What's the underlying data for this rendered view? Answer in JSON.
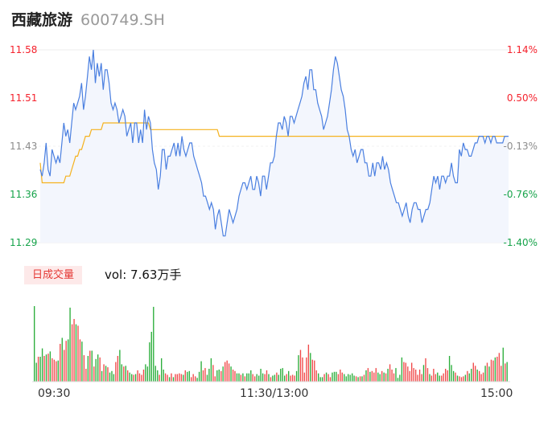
{
  "header": {
    "name": "西藏旅游",
    "code": "600749.SH"
  },
  "price_axis": {
    "labels": [
      "11.58",
      "11.51",
      "11.43",
      "11.36",
      "11.29"
    ],
    "pct_labels": [
      "1.14%",
      "0.50%",
      "-0.13%",
      "-0.76%",
      "-1.40%"
    ]
  },
  "volume": {
    "tag": "日成交量",
    "label": "vol: 7.63万手"
  },
  "time_axis": {
    "labels": [
      "09:30",
      "11:30/13:00",
      "15:00"
    ]
  },
  "colors": {
    "price_line": "#4a7fe0",
    "avg_line": "#f5b21e",
    "area_fill": "#f3f6fd",
    "up": "#f5222d",
    "down": "#16a34a",
    "vol_up": "#f04a4a",
    "vol_down": "#2cae3c"
  },
  "chart_data": {
    "type": "line",
    "title": "西藏旅游 600749.SH",
    "x_range": [
      "09:30",
      "15:00"
    ],
    "ylim": [
      11.29,
      11.58
    ],
    "pct_range": [
      -1.4,
      1.14
    ],
    "series": [
      {
        "values": [
          11.4,
          11.39,
          11.41,
          11.44,
          11.4,
          11.39,
          11.43,
          11.42,
          11.41,
          11.42,
          11.41,
          11.44,
          11.47,
          11.45,
          11.46,
          11.44,
          11.47,
          11.5,
          11.49,
          11.5,
          11.51,
          11.53,
          11.49,
          11.51,
          11.54,
          11.57,
          11.55,
          11.58,
          11.53,
          11.56,
          11.54,
          11.56,
          11.52,
          11.55,
          11.55,
          11.53,
          11.5,
          11.49,
          11.5,
          11.49,
          11.47,
          11.48,
          11.49,
          11.48,
          11.45,
          11.46,
          11.47,
          11.44,
          11.47,
          11.47,
          11.44,
          11.46,
          11.44,
          11.49,
          11.46,
          11.48,
          11.47,
          11.43,
          11.41,
          11.4,
          11.37,
          11.39,
          11.43,
          11.43,
          11.4,
          11.42,
          11.42,
          11.43,
          11.44,
          11.42,
          11.44,
          11.42,
          11.45,
          11.43,
          11.42,
          11.43,
          11.44,
          11.44,
          11.42,
          11.41,
          11.4,
          11.39,
          11.38,
          11.36,
          11.36,
          11.35,
          11.34,
          11.35,
          11.34,
          11.31,
          11.33,
          11.34,
          11.32,
          11.3,
          11.3,
          11.32,
          11.34,
          11.33,
          11.32,
          11.33,
          11.34,
          11.36,
          11.37,
          11.38,
          11.38,
          11.37,
          11.38,
          11.39,
          11.37,
          11.37,
          11.39,
          11.38,
          11.36,
          11.39,
          11.39,
          11.37,
          11.39,
          11.41,
          11.41,
          11.42,
          11.45,
          11.47,
          11.47,
          11.46,
          11.48,
          11.47,
          11.45,
          11.48,
          11.48,
          11.47,
          11.48,
          11.49,
          11.5,
          11.51,
          11.53,
          11.54,
          11.52,
          11.55,
          11.55,
          11.52,
          11.52,
          11.5,
          11.49,
          11.48,
          11.46,
          11.47,
          11.48,
          11.5,
          11.52,
          11.55,
          11.57,
          11.56,
          11.54,
          11.52,
          11.51,
          11.49,
          11.46,
          11.45,
          11.43,
          11.42,
          11.43,
          11.41,
          11.42,
          11.43,
          11.43,
          11.41,
          11.41,
          11.39,
          11.39,
          11.41,
          11.39,
          11.41,
          11.41,
          11.4,
          11.42,
          11.4,
          11.41,
          11.4,
          11.38,
          11.37,
          11.36,
          11.35,
          11.35,
          11.34,
          11.33,
          11.34,
          11.35,
          11.33,
          11.32,
          11.34,
          11.35,
          11.35,
          11.34,
          11.34,
          11.32,
          11.33,
          11.34,
          11.34,
          11.35,
          11.37,
          11.39,
          11.38,
          11.39,
          11.37,
          11.39,
          11.39,
          11.38,
          11.39,
          11.39,
          11.41,
          11.39,
          11.38,
          11.38,
          11.43,
          11.42,
          11.44,
          11.43,
          11.43,
          11.42,
          11.42,
          11.43,
          11.44,
          11.44,
          11.45,
          11.45,
          11.45,
          11.44,
          11.45,
          11.45,
          11.44,
          11.45,
          11.45,
          11.44,
          11.44,
          11.44,
          11.44,
          11.45,
          11.45,
          11.45
        ],
        "stroke": "#4a7fe0"
      },
      {
        "values": [
          11.41,
          11.38,
          11.38,
          11.38,
          11.38,
          11.38,
          11.38,
          11.38,
          11.38,
          11.38,
          11.38,
          11.38,
          11.38,
          11.39,
          11.39,
          11.39,
          11.4,
          11.41,
          11.42,
          11.42,
          11.43,
          11.43,
          11.44,
          11.45,
          11.45,
          11.45,
          11.46,
          11.46,
          11.46,
          11.46,
          11.46,
          11.46,
          11.47,
          11.47,
          11.47,
          11.47,
          11.47,
          11.47,
          11.47,
          11.47,
          11.47,
          11.47,
          11.47,
          11.47,
          11.47,
          11.47,
          11.47,
          11.47,
          11.47,
          11.47,
          11.47,
          11.47,
          11.47,
          11.47,
          11.47,
          11.47,
          11.46,
          11.46,
          11.46,
          11.46,
          11.46,
          11.46,
          11.46,
          11.46,
          11.46,
          11.46,
          11.46,
          11.46,
          11.46,
          11.46,
          11.46,
          11.46,
          11.46,
          11.46,
          11.46,
          11.46,
          11.46,
          11.46,
          11.46,
          11.46,
          11.46,
          11.46,
          11.46,
          11.46,
          11.46,
          11.46,
          11.46,
          11.46,
          11.46,
          11.46,
          11.46,
          11.45,
          11.45,
          11.45,
          11.45,
          11.45,
          11.45,
          11.45,
          11.45,
          11.45,
          11.45,
          11.45,
          11.45,
          11.45,
          11.45,
          11.45,
          11.45,
          11.45,
          11.45,
          11.45,
          11.45,
          11.45,
          11.45,
          11.45,
          11.45,
          11.45,
          11.45,
          11.45,
          11.45,
          11.45,
          11.45,
          11.45,
          11.45,
          11.45,
          11.45,
          11.45,
          11.45,
          11.45,
          11.45,
          11.45,
          11.45,
          11.45,
          11.45,
          11.45,
          11.45,
          11.45,
          11.45,
          11.45,
          11.45,
          11.45,
          11.45,
          11.45,
          11.45,
          11.45,
          11.45,
          11.45,
          11.45,
          11.45,
          11.45,
          11.45,
          11.45,
          11.45,
          11.45,
          11.45,
          11.45,
          11.45,
          11.45,
          11.45,
          11.45,
          11.45,
          11.45,
          11.45,
          11.45,
          11.45,
          11.45,
          11.45,
          11.45,
          11.45,
          11.45,
          11.45,
          11.45,
          11.45,
          11.45,
          11.45,
          11.45,
          11.45,
          11.45,
          11.45,
          11.45,
          11.45,
          11.45,
          11.45,
          11.45,
          11.45,
          11.45,
          11.45,
          11.45,
          11.45,
          11.45,
          11.45,
          11.45,
          11.45,
          11.45,
          11.45,
          11.45,
          11.45,
          11.45,
          11.45,
          11.45,
          11.45,
          11.45,
          11.45,
          11.45,
          11.45,
          11.45,
          11.45,
          11.45,
          11.45,
          11.45,
          11.45,
          11.45,
          11.45,
          11.45,
          11.45,
          11.45,
          11.45,
          11.45,
          11.45,
          11.45,
          11.45,
          11.45,
          11.45,
          11.45,
          11.45,
          11.45,
          11.45,
          11.45,
          11.45,
          11.45,
          11.45,
          11.45,
          11.45,
          11.45,
          11.45,
          11.45,
          11.45,
          11.45,
          11.45
        ],
        "stroke": "#f5b21e"
      }
    ],
    "volume": {
      "ylim": [
        0,
        100
      ],
      "values": [
        100,
        25,
        33,
        33,
        44,
        34,
        36,
        37,
        40,
        31,
        29,
        27,
        28,
        50,
        58,
        42,
        54,
        56,
        98,
        76,
        83,
        76,
        74,
        56,
        53,
        35,
        17,
        34,
        41,
        41,
        20,
        30,
        36,
        32,
        14,
        23,
        21,
        19,
        12,
        14,
        10,
        26,
        34,
        42,
        23,
        20,
        21,
        15,
        12,
        10,
        9,
        10,
        15,
        11,
        9,
        16,
        23,
        20,
        52,
        66,
        99,
        21,
        15,
        9,
        31,
        16,
        11,
        9,
        6,
        11,
        6,
        10,
        10,
        11,
        10,
        9,
        15,
        13,
        14,
        6,
        10,
        7,
        5,
        13,
        27,
        15,
        18,
        9,
        17,
        31,
        22,
        7,
        15,
        16,
        14,
        20,
        26,
        28,
        24,
        20,
        16,
        14,
        11,
        11,
        9,
        11,
        7,
        11,
        11,
        15,
        10,
        7,
        10,
        8,
        17,
        11,
        10,
        15,
        10,
        6,
        8,
        9,
        12,
        9,
        17,
        18,
        8,
        10,
        14,
        8,
        9,
        8,
        14,
        35,
        42,
        32,
        12,
        32,
        49,
        38,
        29,
        28,
        15,
        11,
        6,
        6,
        10,
        12,
        10,
        6,
        12,
        13,
        13,
        10,
        16,
        12,
        10,
        7,
        10,
        9,
        11,
        8,
        7,
        6,
        7,
        7,
        9,
        15,
        18,
        13,
        14,
        12,
        18,
        12,
        10,
        14,
        12,
        11,
        17,
        23,
        16,
        11,
        18,
        5,
        9,
        32,
        26,
        25,
        20,
        14,
        25,
        18,
        16,
        9,
        16,
        10,
        22,
        31,
        18,
        10,
        8,
        17,
        10,
        12,
        8,
        8,
        11,
        17,
        15,
        34,
        22,
        14,
        12,
        8,
        7,
        6,
        7,
        9,
        14,
        11,
        17,
        25,
        21,
        16,
        14,
        10,
        12,
        21,
        25,
        20,
        29,
        28,
        32,
        33,
        38,
        21,
        45,
        24,
        26
      ],
      "direction": [
        "down",
        "down",
        "up",
        "down",
        "down",
        "up",
        "down",
        "up",
        "down",
        "up",
        "up",
        "up",
        "down",
        "up",
        "down",
        "up",
        "up",
        "down",
        "down",
        "up",
        "up",
        "down",
        "up",
        "up",
        "down",
        "up",
        "up",
        "down",
        "up",
        "down",
        "up",
        "down",
        "down",
        "up",
        "down",
        "up",
        "down",
        "up",
        "down",
        "down",
        "down",
        "up",
        "up",
        "down",
        "down",
        "up",
        "down",
        "up",
        "down",
        "down",
        "up",
        "down",
        "up",
        "up",
        "up",
        "up",
        "down",
        "down",
        "down",
        "down",
        "down",
        "down",
        "down",
        "up",
        "down",
        "down",
        "up",
        "up",
        "down",
        "up",
        "down",
        "up",
        "up",
        "up",
        "up",
        "down",
        "up",
        "down",
        "down",
        "up",
        "up",
        "up",
        "down",
        "down",
        "down",
        "up",
        "up",
        "down",
        "down",
        "down",
        "up",
        "up",
        "down",
        "down",
        "up",
        "down",
        "up",
        "up",
        "up",
        "down",
        "up",
        "up",
        "down",
        "down",
        "up",
        "down",
        "up",
        "down",
        "down",
        "down",
        "up",
        "up",
        "down",
        "down",
        "down",
        "down",
        "up",
        "up",
        "down",
        "up",
        "down",
        "down",
        "up",
        "down",
        "down",
        "down",
        "down",
        "up",
        "down",
        "up",
        "up",
        "up",
        "down",
        "down",
        "up",
        "up",
        "up",
        "up",
        "up",
        "down",
        "up",
        "up",
        "up",
        "down",
        "down",
        "down",
        "up",
        "down",
        "up",
        "up",
        "down",
        "down",
        "down",
        "up",
        "up",
        "up",
        "down",
        "down",
        "down",
        "down",
        "down",
        "down",
        "up",
        "down",
        "up",
        "down",
        "up",
        "down",
        "up",
        "down",
        "up",
        "up",
        "up",
        "down",
        "down",
        "up",
        "down",
        "up",
        "down",
        "up",
        "up",
        "up",
        "down",
        "down",
        "down",
        "down",
        "up",
        "up",
        "up",
        "up",
        "up",
        "up",
        "up",
        "up",
        "up",
        "up",
        "down",
        "up",
        "up",
        "down",
        "up",
        "up",
        "up",
        "down",
        "down",
        "up",
        "up",
        "up",
        "up",
        "down",
        "down",
        "down",
        "up",
        "down",
        "up",
        "up",
        "up",
        "down",
        "up",
        "down",
        "down",
        "up",
        "up",
        "down",
        "up",
        "up",
        "up",
        "down",
        "up",
        "down",
        "up",
        "up",
        "down",
        "up",
        "up",
        "up",
        "down",
        "up",
        "down",
        "up",
        "up",
        "up",
        "up",
        "up",
        "up",
        "up",
        "up",
        "up",
        "up",
        "up",
        "up",
        "up"
      ]
    }
  }
}
